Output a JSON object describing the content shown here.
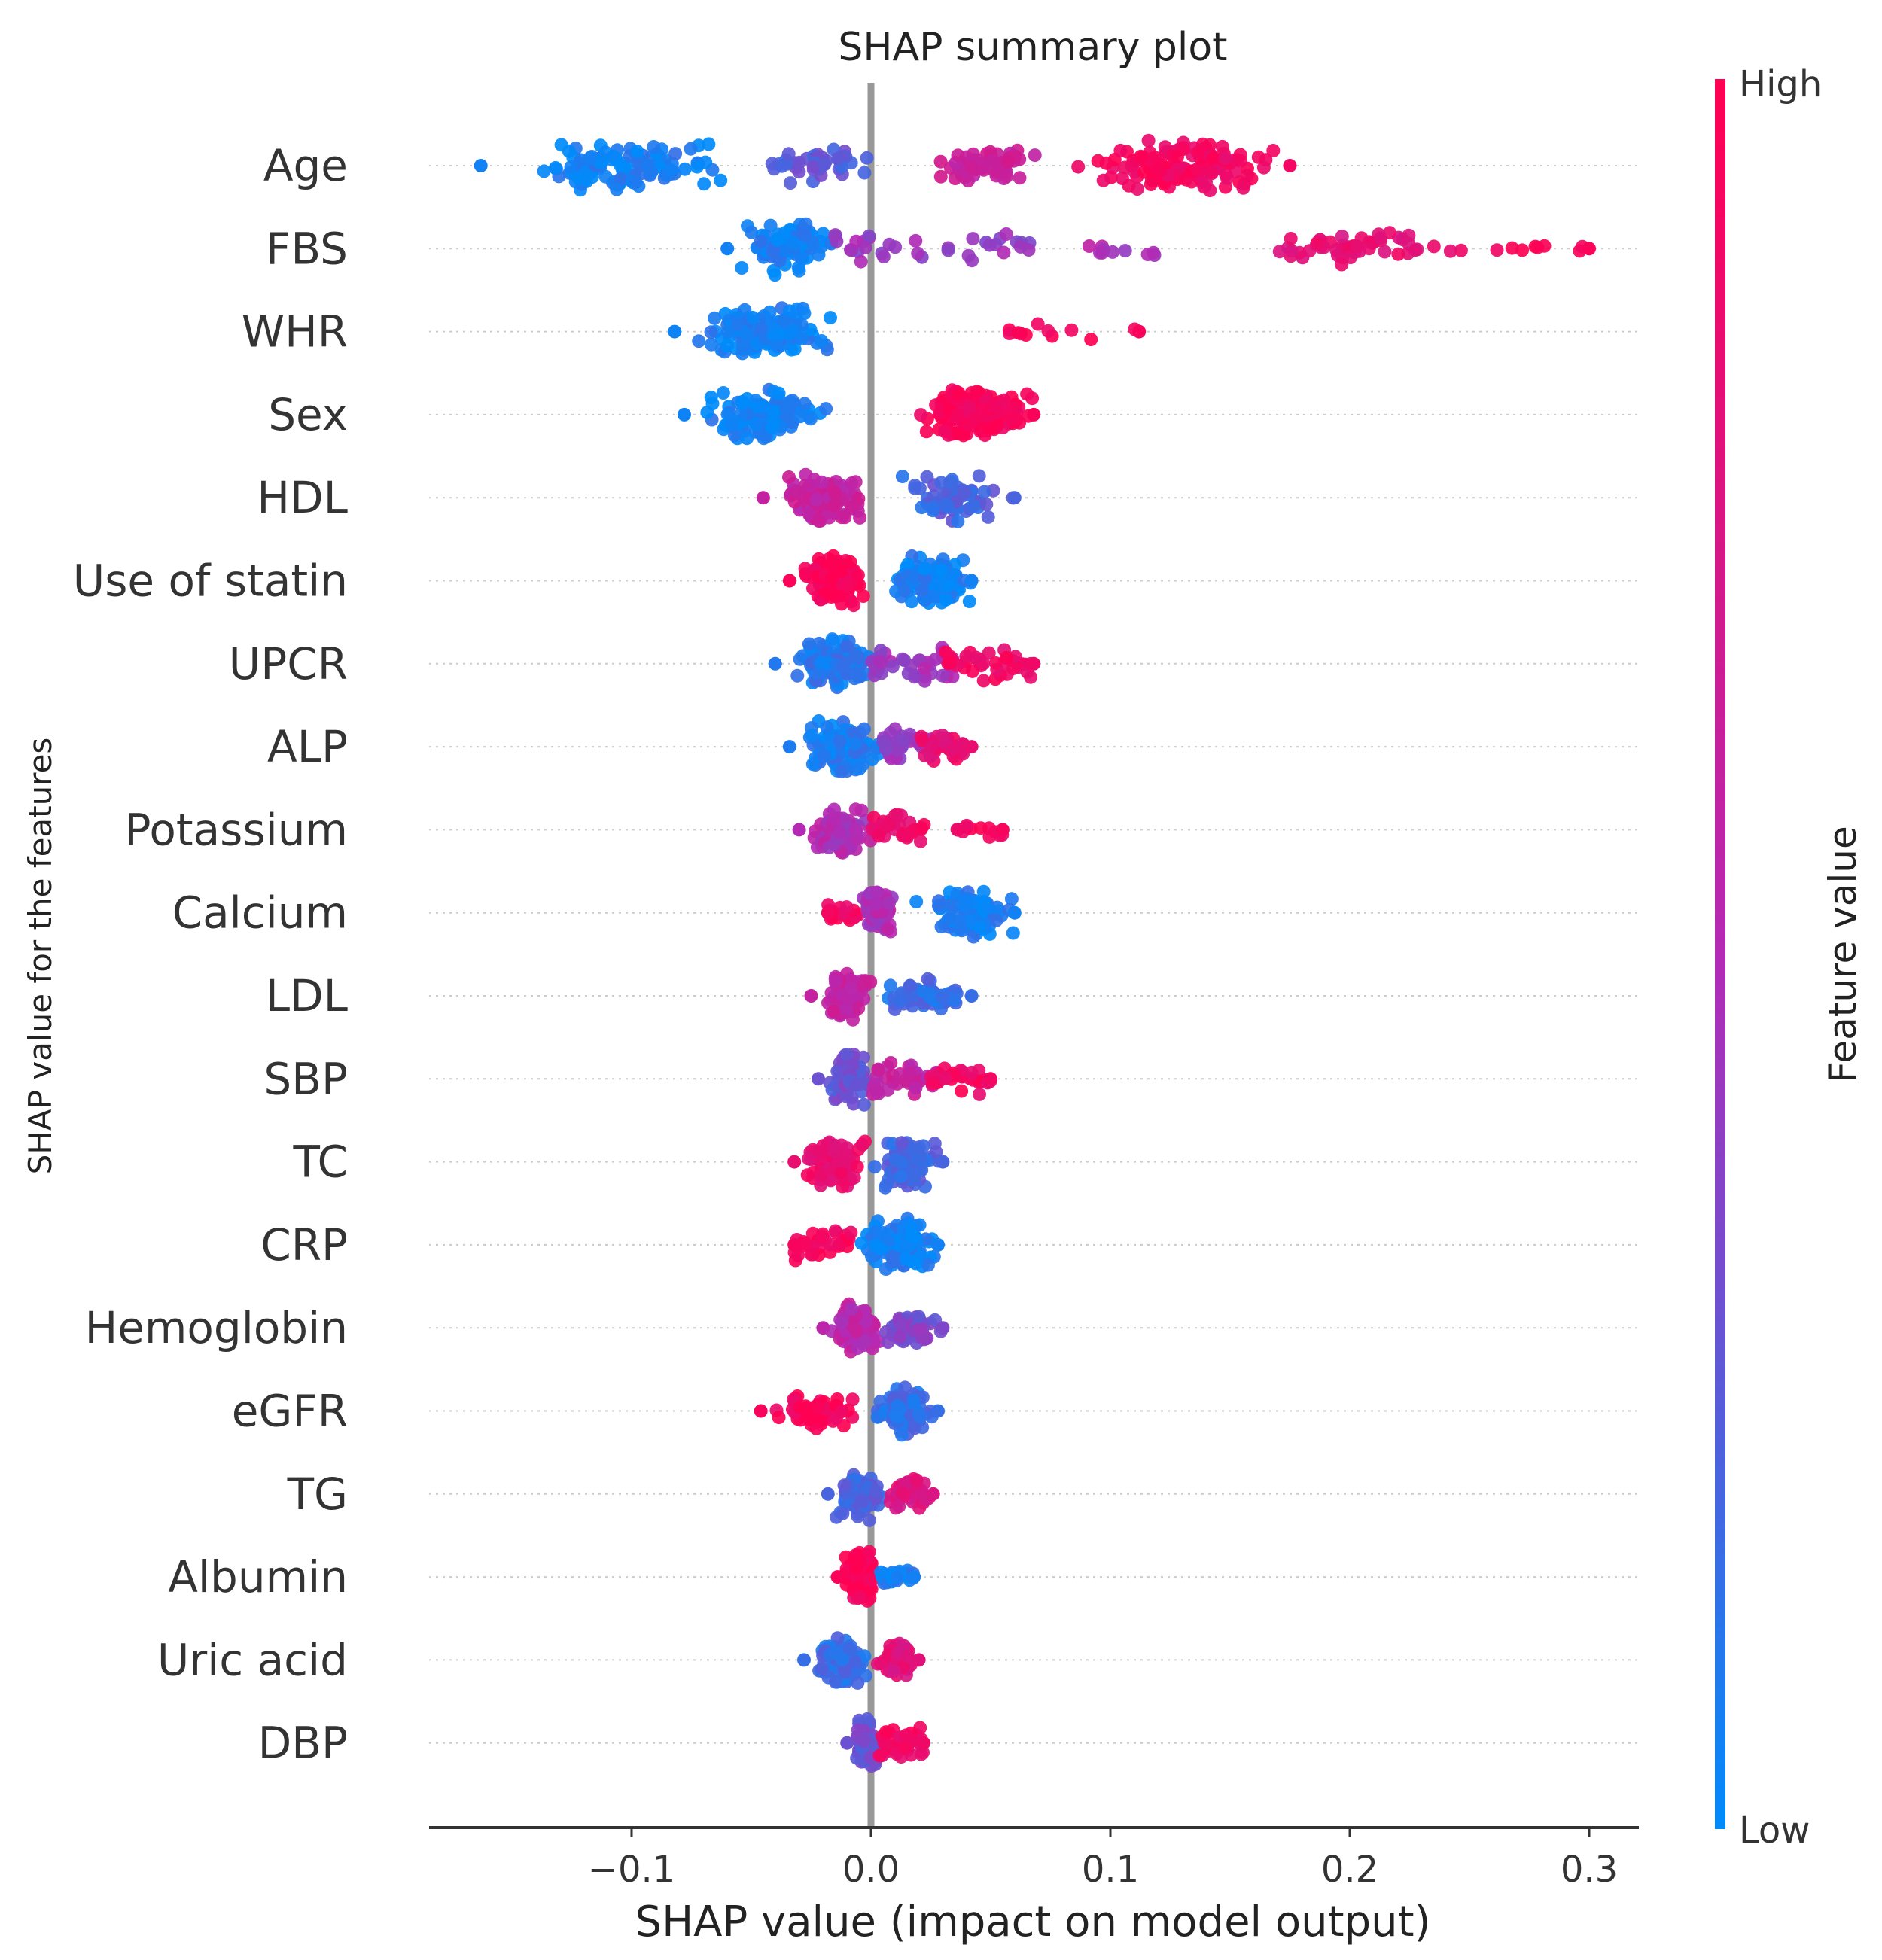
{
  "chart_data": {
    "type": "scatter",
    "subtype": "shap-beeswarm",
    "title": "SHAP summary plot",
    "xlabel": "SHAP value (impact on model output)",
    "ylabel": "SHAP value for the features",
    "xlim": [
      -0.185,
      0.32
    ],
    "xticks": [
      -0.1,
      0.0,
      0.1,
      0.2,
      0.3
    ],
    "xtick_labels": [
      "−0.1",
      "0.0",
      "0.1",
      "0.2",
      "0.3"
    ],
    "colorbar": {
      "title": "Feature value",
      "high_label": "High",
      "low_label": "Low",
      "high_color": "#ff0052",
      "mid_color": "#b42ab4",
      "low_color": "#008bfb"
    },
    "colors": {
      "zero_line": "#999999",
      "row_grid": "#cccccc",
      "axis": "#333333"
    },
    "features": [
      {
        "name": "Age",
        "min": -0.163,
        "max": 0.175,
        "segments": [
          [
            -0.163,
            -0.06,
            0.05,
            "low",
            120
          ],
          [
            -0.06,
            0.005,
            0.25,
            "mid",
            45
          ],
          [
            0.02,
            0.07,
            0.62,
            "mid",
            60
          ],
          [
            0.07,
            0.175,
            0.92,
            "high",
            140
          ]
        ]
      },
      {
        "name": "FBS",
        "min": -0.06,
        "max": 0.3,
        "segments": [
          [
            -0.06,
            -0.015,
            0.05,
            "low",
            90
          ],
          [
            -0.015,
            0.07,
            0.42,
            "mid",
            35
          ],
          [
            0.08,
            0.13,
            0.5,
            "mid",
            10
          ],
          [
            0.135,
            0.25,
            0.82,
            "high",
            55
          ],
          [
            0.25,
            0.3,
            0.97,
            "high",
            8
          ]
        ]
      },
      {
        "name": "WHR",
        "min": -0.082,
        "max": 0.112,
        "segments": [
          [
            -0.082,
            -0.015,
            0.04,
            "low",
            150
          ],
          [
            0.055,
            0.092,
            0.95,
            "high",
            10
          ],
          [
            0.11,
            0.112,
            0.95,
            "high",
            1
          ]
        ]
      },
      {
        "name": "Sex",
        "min": -0.078,
        "max": 0.068,
        "segments": [
          [
            -0.078,
            -0.018,
            0.04,
            "low",
            120
          ],
          [
            0.01,
            0.068,
            0.96,
            "high",
            150
          ]
        ]
      },
      {
        "name": "HDL",
        "min": -0.045,
        "max": 0.06,
        "segments": [
          [
            -0.045,
            0.0,
            0.6,
            "mid",
            90
          ],
          [
            0.0,
            0.06,
            0.2,
            "low",
            70
          ]
        ]
      },
      {
        "name": "Use of statin",
        "min": -0.034,
        "max": 0.042,
        "segments": [
          [
            -0.034,
            -0.003,
            0.97,
            "high",
            130
          ],
          [
            0.003,
            0.042,
            0.05,
            "low",
            110
          ]
        ]
      },
      {
        "name": "UPCR",
        "min": -0.04,
        "max": 0.068,
        "segments": [
          [
            -0.04,
            0.003,
            0.1,
            "low",
            130
          ],
          [
            0.0,
            0.035,
            0.45,
            "mid",
            40
          ],
          [
            0.03,
            0.068,
            0.9,
            "high",
            35
          ]
        ]
      },
      {
        "name": "ALP",
        "min": -0.034,
        "max": 0.042,
        "segments": [
          [
            -0.034,
            0.005,
            0.08,
            "low",
            110
          ],
          [
            0.005,
            0.025,
            0.45,
            "mid",
            35
          ],
          [
            0.02,
            0.042,
            0.85,
            "high",
            30
          ]
        ]
      },
      {
        "name": "Potassium",
        "min": -0.03,
        "max": 0.055,
        "segments": [
          [
            -0.03,
            0.0,
            0.5,
            "mid",
            70
          ],
          [
            0.0,
            0.025,
            0.88,
            "high",
            30
          ],
          [
            0.036,
            0.055,
            0.95,
            "high",
            12
          ]
        ]
      },
      {
        "name": "Calcium",
        "min": -0.018,
        "max": 0.06,
        "segments": [
          [
            -0.018,
            -0.005,
            0.92,
            "high",
            20
          ],
          [
            -0.006,
            0.01,
            0.5,
            "mid",
            110
          ],
          [
            0.012,
            0.06,
            0.05,
            "low",
            80
          ]
        ]
      },
      {
        "name": "LDL",
        "min": -0.025,
        "max": 0.042,
        "segments": [
          [
            -0.025,
            0.0,
            0.6,
            "mid",
            80
          ],
          [
            0.0,
            0.042,
            0.15,
            "low",
            60
          ]
        ]
      },
      {
        "name": "SBP",
        "min": -0.022,
        "max": 0.05,
        "segments": [
          [
            -0.022,
            0.002,
            0.3,
            "low",
            80
          ],
          [
            0.0,
            0.03,
            0.6,
            "mid",
            40
          ],
          [
            0.025,
            0.05,
            0.92,
            "high",
            30
          ]
        ]
      },
      {
        "name": "TC",
        "min": -0.032,
        "max": 0.03,
        "segments": [
          [
            -0.032,
            -0.002,
            0.85,
            "high",
            80
          ],
          [
            -0.005,
            0.03,
            0.2,
            "low",
            90
          ]
        ]
      },
      {
        "name": "CRP",
        "min": -0.032,
        "max": 0.028,
        "segments": [
          [
            -0.032,
            -0.008,
            0.95,
            "high",
            30
          ],
          [
            -0.01,
            0.028,
            0.05,
            "low",
            110
          ]
        ]
      },
      {
        "name": "Hemoglobin",
        "min": -0.02,
        "max": 0.03,
        "segments": [
          [
            -0.02,
            0.005,
            0.55,
            "mid",
            90
          ],
          [
            0.0,
            0.03,
            0.35,
            "low",
            60
          ]
        ]
      },
      {
        "name": "eGFR",
        "min": -0.046,
        "max": 0.028,
        "segments": [
          [
            -0.046,
            -0.005,
            0.95,
            "high",
            50
          ],
          [
            -0.005,
            0.028,
            0.15,
            "low",
            90
          ]
        ]
      },
      {
        "name": "TG",
        "min": -0.018,
        "max": 0.026,
        "segments": [
          [
            -0.018,
            0.005,
            0.2,
            "low",
            90
          ],
          [
            0.003,
            0.026,
            0.75,
            "high",
            45
          ]
        ]
      },
      {
        "name": "Albumin",
        "min": -0.014,
        "max": 0.018,
        "segments": [
          [
            -0.014,
            0.002,
            0.97,
            "high",
            100
          ],
          [
            0.004,
            0.018,
            0.05,
            "low",
            25
          ]
        ]
      },
      {
        "name": "Uric acid",
        "min": -0.028,
        "max": 0.02,
        "segments": [
          [
            -0.028,
            0.0,
            0.15,
            "low",
            90
          ],
          [
            -0.002,
            0.02,
            0.8,
            "high",
            50
          ]
        ]
      },
      {
        "name": "DBP",
        "min": -0.01,
        "max": 0.022,
        "segments": [
          [
            -0.01,
            0.004,
            0.3,
            "low",
            70
          ],
          [
            0.003,
            0.022,
            0.9,
            "high",
            40
          ]
        ]
      }
    ]
  }
}
